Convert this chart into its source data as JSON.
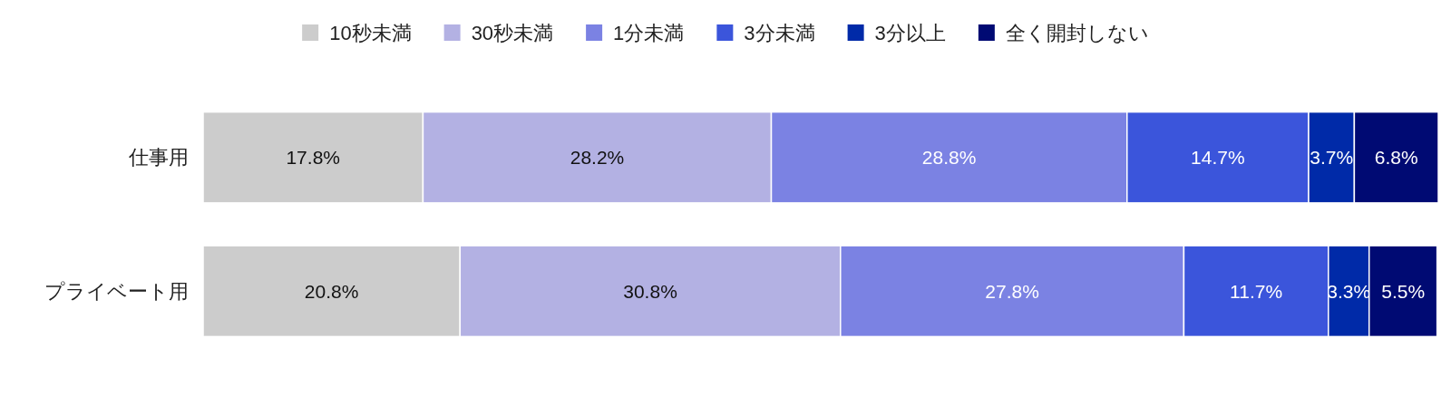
{
  "chart_data": {
    "type": "bar",
    "orientation": "horizontal",
    "stacked": true,
    "legend": "top",
    "categories": [
      "仕事用",
      "プライベート用"
    ],
    "series": [
      {
        "name": "10秒未満",
        "color": "#cccccc",
        "values": [
          17.8,
          20.8
        ],
        "value_labels": [
          "17.8%",
          "20.8%"
        ]
      },
      {
        "name": "30秒未満",
        "color": "#b3b1e3",
        "values": [
          28.2,
          30.8
        ],
        "value_labels": [
          "28.2%",
          "30.8%"
        ]
      },
      {
        "name": "1分未満",
        "color": "#7b82e3",
        "values": [
          28.8,
          27.8
        ],
        "value_labels": [
          "28.8%",
          "27.8%"
        ]
      },
      {
        "name": "3分未満",
        "color": "#3b55db",
        "values": [
          14.7,
          11.7
        ],
        "value_labels": [
          "14.7%",
          "11.7%"
        ]
      },
      {
        "name": "3分以上",
        "color": "#002aa8",
        "values": [
          3.7,
          3.3
        ],
        "value_labels": [
          "3.7%",
          "3.3%"
        ]
      },
      {
        "name": "全く開封しない",
        "color": "#000a73",
        "values": [
          6.8,
          5.5
        ],
        "value_labels": [
          "6.8%",
          "5.5%"
        ]
      }
    ]
  }
}
